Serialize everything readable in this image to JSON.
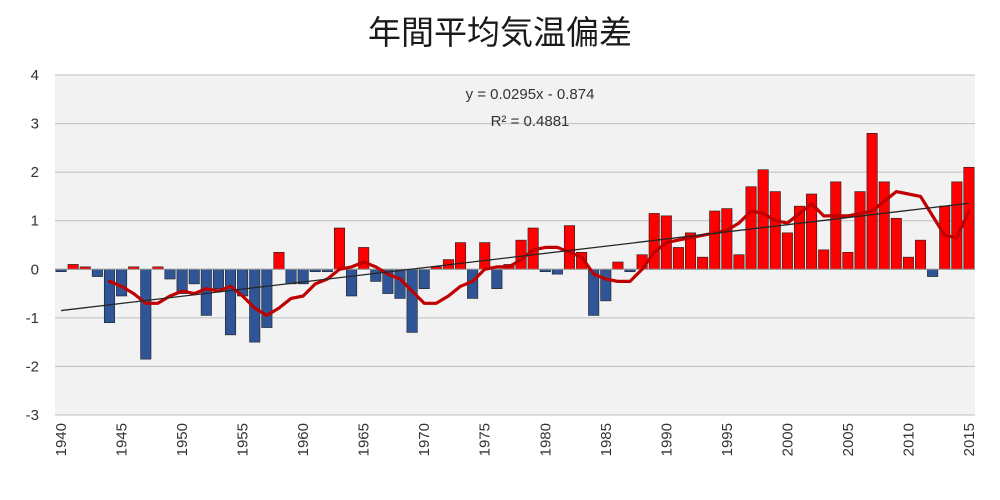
{
  "chart_data": {
    "type": "bar",
    "title": "年間平均気温偏差",
    "xlabel": "",
    "ylabel": "",
    "ylim": [
      -3,
      4
    ],
    "yticks": [
      "4",
      "3",
      "2",
      "1",
      "0",
      "-1",
      "-2",
      "-3"
    ],
    "xticks": [
      "1940",
      "1945",
      "1950",
      "1955",
      "1960",
      "1965",
      "1970",
      "1975",
      "1980",
      "1985",
      "1990",
      "1995",
      "2000",
      "2005",
      "2010",
      "2015"
    ],
    "years": [
      1940,
      1941,
      1942,
      1943,
      1944,
      1945,
      1946,
      1947,
      1948,
      1949,
      1950,
      1951,
      1952,
      1953,
      1954,
      1955,
      1956,
      1957,
      1958,
      1959,
      1960,
      1961,
      1962,
      1963,
      1964,
      1965,
      1966,
      1967,
      1968,
      1969,
      1970,
      1971,
      1972,
      1973,
      1974,
      1975,
      1976,
      1977,
      1978,
      1979,
      1980,
      1981,
      1982,
      1983,
      1984,
      1985,
      1986,
      1987,
      1988,
      1989,
      1990,
      1991,
      1992,
      1993,
      1994,
      1995,
      1996,
      1997,
      1998,
      1999,
      2000,
      2001,
      2002,
      2003,
      2004,
      2005,
      2006,
      2007,
      2008,
      2009,
      2010,
      2011,
      2012,
      2013,
      2014,
      2015
    ],
    "series": [
      {
        "type": "bar",
        "values": [
          -0.05,
          0.1,
          0.05,
          -0.15,
          -1.1,
          -0.55,
          0.05,
          -1.85,
          0.05,
          -0.2,
          -0.5,
          -0.3,
          -0.95,
          -0.4,
          -1.35,
          -0.55,
          -1.5,
          -1.2,
          0.35,
          -0.3,
          -0.3,
          -0.05,
          -0.05,
          0.85,
          -0.55,
          0.45,
          -0.25,
          -0.5,
          -0.6,
          -1.3,
          -0.4,
          0.05,
          0.2,
          0.55,
          -0.6,
          0.55,
          -0.4,
          0.1,
          0.6,
          0.85,
          -0.05,
          -0.1,
          0.9,
          0.35,
          -0.95,
          -0.65,
          0.15,
          -0.05,
          0.3,
          1.15,
          1.1,
          0.45,
          0.75,
          0.25,
          1.2,
          1.25,
          0.3,
          1.7,
          2.05,
          1.6,
          0.75,
          1.3,
          1.55,
          0.4,
          1.8,
          0.35,
          1.6,
          2.8,
          1.8,
          1.05,
          0.25,
          0.6,
          -0.15,
          1.3,
          1.8,
          2.1
        ],
        "positive_color": "#ff0000",
        "negative_color": "#2f5597"
      },
      {
        "type": "line",
        "color": "#c00000",
        "x": [
          1944,
          1945,
          1946,
          1947,
          1948,
          1949,
          1950,
          1951,
          1952,
          1953,
          1954,
          1955,
          1956,
          1957,
          1958,
          1959,
          1960,
          1961,
          1962,
          1963,
          1964,
          1965,
          1966,
          1967,
          1968,
          1969,
          1970,
          1971,
          1972,
          1973,
          1974,
          1975,
          1976,
          1977,
          1978,
          1979,
          1980,
          1981,
          1982,
          1983,
          1984,
          1985,
          1986,
          1987,
          1988,
          1989,
          1990,
          1991,
          1992,
          1993,
          1994,
          1995,
          1996,
          1997,
          1998,
          1999,
          2000,
          2001,
          2002,
          2003,
          2004,
          2005,
          2006,
          2007,
          2008,
          2009,
          2010,
          2011,
          2012,
          2013,
          2014,
          2015
        ],
        "values": [
          -0.25,
          -0.35,
          -0.5,
          -0.7,
          -0.7,
          -0.55,
          -0.45,
          -0.5,
          -0.4,
          -0.45,
          -0.35,
          -0.55,
          -0.8,
          -0.95,
          -0.8,
          -0.6,
          -0.55,
          -0.3,
          -0.2,
          0.0,
          0.05,
          0.15,
          0.05,
          -0.1,
          -0.2,
          -0.45,
          -0.7,
          -0.7,
          -0.55,
          -0.35,
          -0.25,
          0.0,
          0.05,
          0.05,
          0.2,
          0.4,
          0.45,
          0.45,
          0.35,
          0.25,
          -0.1,
          -0.2,
          -0.25,
          -0.25,
          0.0,
          0.35,
          0.55,
          0.6,
          0.65,
          0.7,
          0.75,
          0.8,
          0.95,
          1.2,
          1.15,
          1.0,
          0.95,
          1.15,
          1.35,
          1.1,
          1.1,
          1.1,
          1.15,
          1.2,
          1.4,
          1.6,
          1.55,
          1.5,
          1.1,
          0.7,
          0.65,
          1.2
        ]
      },
      {
        "type": "trendline",
        "color": "#262626",
        "x": [
          1940,
          2015
        ],
        "values": [
          -0.85,
          1.36
        ]
      }
    ],
    "annotations": [
      "y = 0.0295x - 0.874",
      "R² = 0.4881"
    ],
    "plot_background": "#f2f2f2",
    "grid": true
  }
}
